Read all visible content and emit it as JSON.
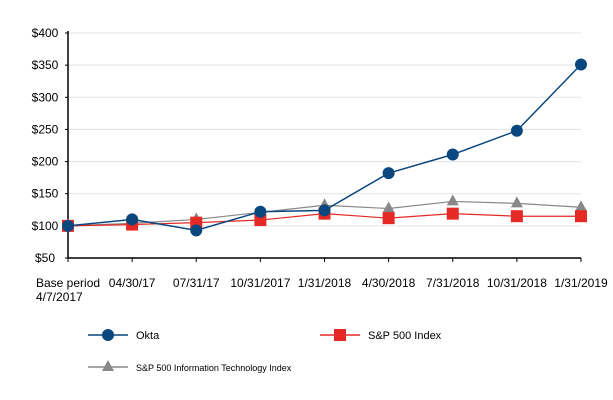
{
  "chart_data": {
    "type": "line",
    "categories": [
      [
        "Base period",
        "4/7/2017"
      ],
      [
        "04/30/17"
      ],
      [
        "07/31/17"
      ],
      [
        "10/31/2017"
      ],
      [
        "1/31/2018"
      ],
      [
        "4/30/2018"
      ],
      [
        "7/31/2018"
      ],
      [
        "10/31/2018"
      ],
      [
        "1/31/2019"
      ]
    ],
    "ylim": [
      50,
      400
    ],
    "yticks": [
      "$50",
      "$100",
      "$150",
      "$200",
      "$250",
      "$300",
      "$350",
      "$400"
    ],
    "ytick_values": [
      50,
      100,
      150,
      200,
      250,
      300,
      350,
      400
    ],
    "grid": true,
    "legend_placement": "bottom",
    "series": [
      {
        "name": "Okta",
        "marker": "circle",
        "color": "#0b477f",
        "values": [
          100,
          110,
          93,
          122,
          124,
          182,
          211,
          248,
          351
        ]
      },
      {
        "name": "S&P 500 Index",
        "marker": "square",
        "color": "#e52a26",
        "values": [
          100,
          102,
          105,
          109,
          119,
          112,
          119,
          115,
          115
        ]
      },
      {
        "name": "S&P 500 Information Technology Index",
        "marker": "triangle",
        "color": "#888888",
        "values": [
          100,
          104,
          110,
          121,
          132,
          127,
          138,
          135,
          129
        ]
      }
    ]
  }
}
